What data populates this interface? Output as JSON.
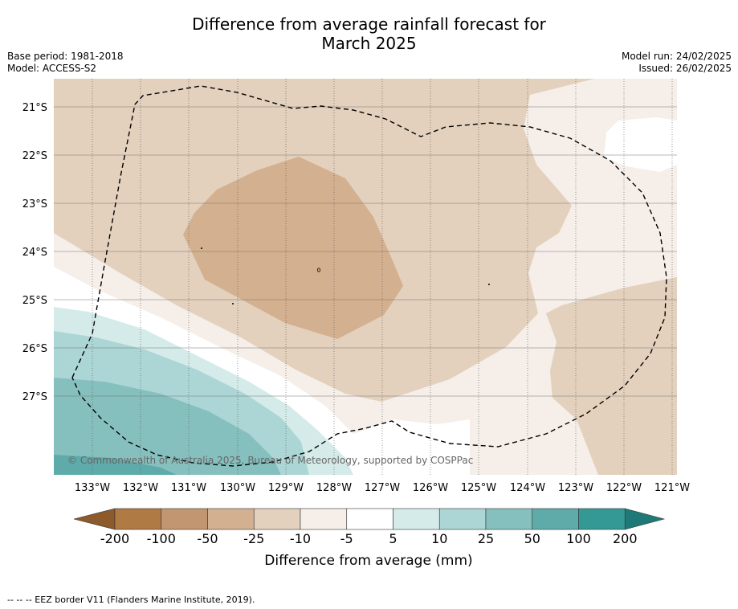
{
  "title_line1": "Difference from average rainfall forecast for",
  "title_line2": "March 2025",
  "base_period": "Base period: 1981-2018",
  "model": "Model: ACCESS-S2",
  "model_run": "Model run: 24/02/2025",
  "issued": "Issued: 26/02/2025",
  "copyright": "© Commonwealth of Australia 2025, Bureau of Meteorology, supported by COSPPac",
  "lat_labels": [
    "21°S",
    "22°S",
    "23°S",
    "24°S",
    "25°S",
    "26°S",
    "27°S"
  ],
  "lon_labels": [
    "133°W",
    "132°W",
    "131°W",
    "130°W",
    "129°W",
    "128°W",
    "127°W",
    "126°W",
    "125°W",
    "124°W",
    "123°W",
    "122°W",
    "121°W"
  ],
  "colorbar": {
    "label": "Difference from average (mm)",
    "ticks": [
      "-200",
      "-100",
      "-50",
      "-25",
      "-10",
      "-5",
      "5",
      "10",
      "25",
      "50",
      "100",
      "200"
    ],
    "colors": [
      "#8c5a2b",
      "#b07a45",
      "#c29670",
      "#d3b08f",
      "#e3d0bd",
      "#f5eee9",
      "#ffffff",
      "#d4ebea",
      "#abd6d5",
      "#85c0be",
      "#5eabaa",
      "#349895",
      "#1f7a77"
    ]
  },
  "footnote": "--  --  -- EEZ border V11 (Flanders Marine Institute, 2019)."
}
